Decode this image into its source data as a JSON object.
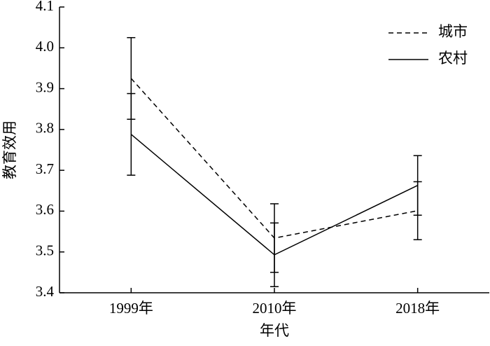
{
  "chart_data": {
    "type": "line",
    "x_label": "年代",
    "y_label": "教育效用",
    "categories": [
      "1999年",
      "2010年",
      "2018年"
    ],
    "series": [
      {
        "name": "城市",
        "color": "#000000",
        "dash": "dashed",
        "values": [
          3.925,
          3.534,
          3.601
        ],
        "errors": [
          0.1,
          0.084,
          0.071
        ]
      },
      {
        "name": "农村",
        "color": "#000000",
        "dash": "solid",
        "values": [
          3.788,
          3.493,
          3.663
        ],
        "errors": [
          0.1,
          0.078,
          0.073
        ]
      }
    ],
    "ylim": [
      3.4,
      4.1
    ],
    "yticks": [
      3.4,
      3.5,
      3.6,
      3.7,
      3.8,
      3.9,
      {
        "value": 4.0,
        "label": "4.0"
      },
      4.1
    ],
    "legend": "upper right"
  }
}
